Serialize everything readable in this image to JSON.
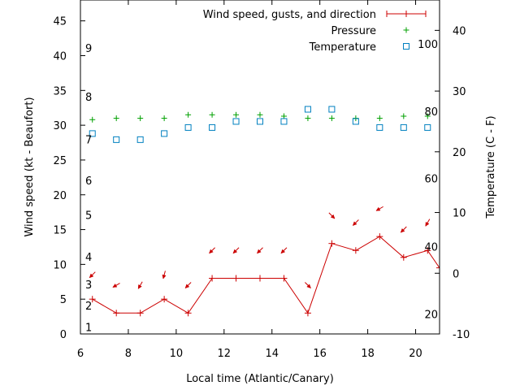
{
  "chart_data": {
    "type": "line",
    "xlabel": "Local time (Atlantic/Canary)",
    "ylabel": "Wind speed (kt - Beaufort)",
    "y2label": "Temperature (C - F)",
    "xlim": [
      6,
      21
    ],
    "ylim": [
      0,
      48
    ],
    "y2lim": [
      -10,
      45
    ],
    "x_ticks": [
      6,
      8,
      10,
      12,
      14,
      16,
      18,
      20
    ],
    "y_ticks": [
      0,
      5,
      10,
      15,
      20,
      25,
      30,
      35,
      40,
      45
    ],
    "y2_ticks": [
      -10,
      0,
      10,
      20,
      30,
      40
    ],
    "beaufort_labels": [
      {
        "label": "1",
        "y": 1
      },
      {
        "label": "2",
        "y": 4.1
      },
      {
        "label": "3",
        "y": 7.1
      },
      {
        "label": "4",
        "y": 11.1
      },
      {
        "label": "5",
        "y": 17.1
      },
      {
        "label": "6",
        "y": 22.1
      },
      {
        "label": "7",
        "y": 28
      },
      {
        "label": "8",
        "y": 34.1
      },
      {
        "label": "9",
        "y": 41.1
      }
    ],
    "fahrenheit_labels": [
      {
        "label": "20",
        "y2": -6.7
      },
      {
        "label": "40",
        "y2": 4.4
      },
      {
        "label": "60",
        "y2": 15.6
      },
      {
        "label": "80",
        "y2": 26.7
      },
      {
        "label": "100",
        "y2": 37.8
      }
    ],
    "legend_placement": "top-right",
    "series": [
      {
        "name": "Wind speed, gusts, and direction",
        "color": "#cc0000",
        "x": [
          6.5,
          7.5,
          8.5,
          9.5,
          10.5,
          11.5,
          12.5,
          13.5,
          14.5,
          15.5,
          16.5,
          17.5,
          18.5,
          19.5,
          20.5,
          21
        ],
        "values": [
          5,
          3,
          3,
          5,
          3,
          8,
          8,
          8,
          8,
          3,
          13,
          12,
          14,
          11,
          12,
          9.5
        ],
        "direction_arrows": [
          {
            "x": 6.5,
            "y": 8.5,
            "from_deg": 45
          },
          {
            "x": 7.5,
            "y": 7,
            "from_deg": 60
          },
          {
            "x": 8.5,
            "y": 7,
            "from_deg": 30
          },
          {
            "x": 9.5,
            "y": 8.5,
            "from_deg": 15
          },
          {
            "x": 10.5,
            "y": 7,
            "from_deg": 45
          },
          {
            "x": 11.5,
            "y": 12,
            "from_deg": 45
          },
          {
            "x": 12.5,
            "y": 12,
            "from_deg": 45
          },
          {
            "x": 13.5,
            "y": 12,
            "from_deg": 45
          },
          {
            "x": 14.5,
            "y": 12,
            "from_deg": 45
          },
          {
            "x": 15.5,
            "y": 7,
            "from_deg": 315
          },
          {
            "x": 16.5,
            "y": 17,
            "from_deg": 315
          },
          {
            "x": 17.5,
            "y": 16,
            "from_deg": 45
          },
          {
            "x": 18.5,
            "y": 18,
            "from_deg": 60
          },
          {
            "x": 19.5,
            "y": 15,
            "from_deg": 45
          },
          {
            "x": 20.5,
            "y": 16,
            "from_deg": 30
          }
        ]
      },
      {
        "name": "Pressure",
        "color": "#00a000",
        "x": [
          6.5,
          7.5,
          8.5,
          9.5,
          10.5,
          11.5,
          12.5,
          13.5,
          14.5,
          15.5,
          16.5,
          17.5,
          18.5,
          19.5,
          20.5
        ],
        "values": [
          30.8,
          31,
          31,
          31,
          31.5,
          31.5,
          31.5,
          31.5,
          31.3,
          31,
          31,
          31,
          31,
          31.3,
          31.3
        ]
      },
      {
        "name": "Temperature",
        "axis": "y2",
        "color": "#0080c0",
        "x": [
          6.5,
          7.5,
          8.5,
          9.5,
          10.5,
          11.5,
          12.5,
          13.5,
          14.5,
          15.5,
          16.5,
          17.5,
          18.5,
          19.5,
          20.5
        ],
        "values": [
          23,
          22,
          22,
          23,
          24,
          24,
          25,
          25,
          25,
          27,
          27,
          25,
          24,
          24,
          24
        ]
      }
    ]
  }
}
